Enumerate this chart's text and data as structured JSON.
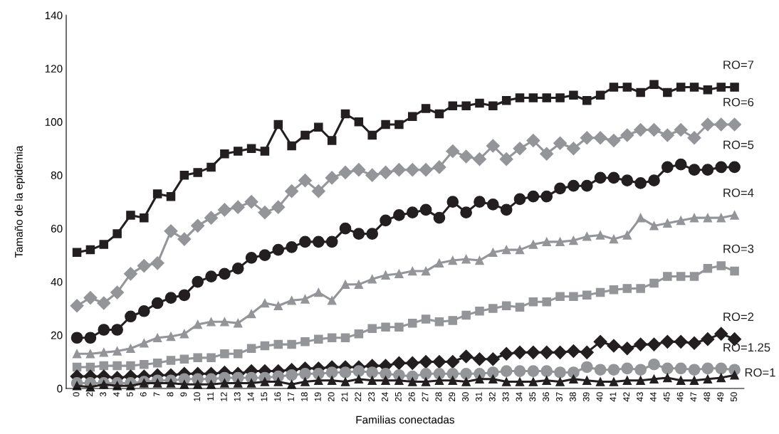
{
  "chart_data": {
    "type": "line",
    "xlabel": "Familias conectadas",
    "ylabel": "Tamaño de la epidemia",
    "categories": [
      "0",
      "2",
      "3",
      "4",
      "5",
      "6",
      "7",
      "8",
      "9",
      "10",
      "11",
      "12",
      "13",
      "14",
      "15",
      "16",
      "17",
      "18",
      "19",
      "20",
      "21",
      "22",
      "23",
      "24",
      "25",
      "26",
      "27",
      "28",
      "29",
      "30",
      "31",
      "32",
      "33",
      "34",
      "35",
      "36",
      "37",
      "38",
      "39",
      "40",
      "41",
      "42",
      "43",
      "44",
      "45",
      "46",
      "47",
      "48",
      "49",
      "50"
    ],
    "ylim": [
      0,
      140
    ],
    "yticks": [
      0,
      20,
      40,
      60,
      80,
      100,
      120,
      140
    ],
    "grid": false,
    "legend": false,
    "line_style": "solid",
    "series": [
      {
        "name": "RO=7",
        "color": "#231f20",
        "marker": "square",
        "values": [
          51,
          52,
          54,
          58,
          65,
          64,
          73,
          72,
          80,
          81,
          83,
          88,
          89,
          90,
          89,
          99,
          91,
          95,
          98,
          93,
          103,
          100,
          95,
          99,
          99,
          102,
          105,
          103,
          106,
          106,
          107,
          106,
          108,
          109,
          109,
          109,
          109,
          110,
          108,
          110,
          113,
          113,
          111,
          114,
          111,
          113,
          113,
          112,
          113,
          113
        ]
      },
      {
        "name": "RO=6",
        "color": "#939598",
        "marker": "diamond",
        "values": [
          31,
          34,
          32,
          36,
          43,
          46,
          47,
          59,
          56,
          61,
          64,
          67,
          68,
          70,
          66,
          68,
          74,
          78,
          74,
          79,
          81,
          82,
          80,
          81,
          82,
          82,
          82,
          83,
          89,
          87,
          86,
          91,
          86,
          90,
          93,
          88,
          92,
          90,
          94,
          94,
          93,
          95,
          97,
          97,
          95,
          97,
          94,
          99,
          99,
          99
        ]
      },
      {
        "name": "RO=5",
        "color": "#231f20",
        "marker": "circle",
        "values": [
          19,
          19,
          22,
          22,
          27,
          29,
          32,
          34,
          35,
          40,
          42,
          43,
          45,
          49,
          50,
          52,
          53,
          55,
          55,
          55,
          60,
          58,
          58,
          63,
          65,
          66,
          67,
          64,
          70,
          66,
          70,
          69,
          67,
          71,
          72,
          72,
          75,
          76,
          76,
          79,
          79,
          78,
          77,
          78,
          83,
          84,
          82,
          82,
          83,
          83
        ]
      },
      {
        "name": "RO=4",
        "color": "#939598",
        "marker": "triangle",
        "values": [
          13,
          13,
          13.5,
          14,
          15,
          17,
          19,
          19.5,
          20.5,
          24,
          25,
          25,
          24.5,
          28,
          32,
          31,
          33,
          33.5,
          36,
          33,
          39,
          39,
          41,
          42.5,
          43,
          44,
          44,
          47,
          48,
          48.5,
          48,
          51,
          52,
          52,
          54,
          55,
          55,
          55.5,
          57,
          57.5,
          56,
          57.5,
          64,
          61,
          62,
          63,
          64,
          64,
          64,
          65
        ]
      },
      {
        "name": "RO=3",
        "color": "#939598",
        "marker": "square",
        "values": [
          8,
          8,
          8.5,
          8.5,
          8.5,
          9,
          9.5,
          10.5,
          11,
          11.5,
          11.5,
          13,
          13,
          15,
          16,
          16.5,
          16.5,
          17.5,
          18.5,
          19,
          19,
          20.5,
          22.5,
          23,
          23,
          24.5,
          26,
          25,
          25.5,
          27.5,
          29,
          30,
          31,
          30.5,
          32.5,
          32.5,
          34.5,
          34.5,
          35,
          36,
          37,
          37.5,
          37.5,
          39.5,
          42,
          42,
          42,
          45,
          46,
          44
        ]
      },
      {
        "name": "RO=2",
        "color": "#231f20",
        "marker": "diamond",
        "values": [
          4.5,
          4.5,
          4.5,
          4,
          4.5,
          4.5,
          5,
          5,
          5.5,
          5.5,
          5.5,
          6,
          5.5,
          6.5,
          6.5,
          6.5,
          7,
          7.5,
          7.5,
          8,
          8,
          8,
          8.5,
          8.5,
          9.5,
          9.5,
          10,
          10,
          10,
          12,
          11,
          11,
          13,
          13.5,
          13.5,
          13.5,
          13.5,
          14,
          13.5,
          17.5,
          16,
          15,
          16.5,
          16.5,
          17.5,
          17.5,
          17,
          18.5,
          20.5,
          18.5
        ]
      },
      {
        "name": "RO=1.25",
        "color": "#939598",
        "marker": "circle",
        "values": [
          2,
          2,
          2,
          2,
          2,
          2.5,
          3,
          3,
          3.5,
          3.5,
          3.5,
          4,
          4,
          4,
          4,
          4.5,
          5,
          5.5,
          5.5,
          6,
          6,
          6.5,
          6,
          5.5,
          5,
          4.5,
          5.5,
          5.5,
          5.5,
          5.5,
          5.5,
          6,
          6.5,
          6.5,
          6.5,
          6.5,
          6,
          6,
          8,
          7,
          7,
          7.5,
          7,
          9,
          7.5,
          7.5,
          7,
          7.5,
          7.5,
          7
        ]
      },
      {
        "name": "RO=1",
        "color": "#231f20",
        "marker": "triangle",
        "values": [
          1,
          0.5,
          1.5,
          1,
          1,
          2,
          2,
          2,
          1.5,
          1.5,
          1.5,
          2,
          2,
          2,
          2.5,
          2.5,
          1.5,
          2.5,
          3,
          3,
          2.5,
          3.5,
          3,
          3,
          3,
          2.5,
          2.5,
          3,
          3,
          2.5,
          3.5,
          3.5,
          2.5,
          2.5,
          2.5,
          3,
          2.5,
          3.5,
          3,
          2.5,
          2.5,
          3,
          3,
          3.5,
          4,
          3,
          3,
          3.5,
          4,
          5
        ]
      }
    ]
  }
}
